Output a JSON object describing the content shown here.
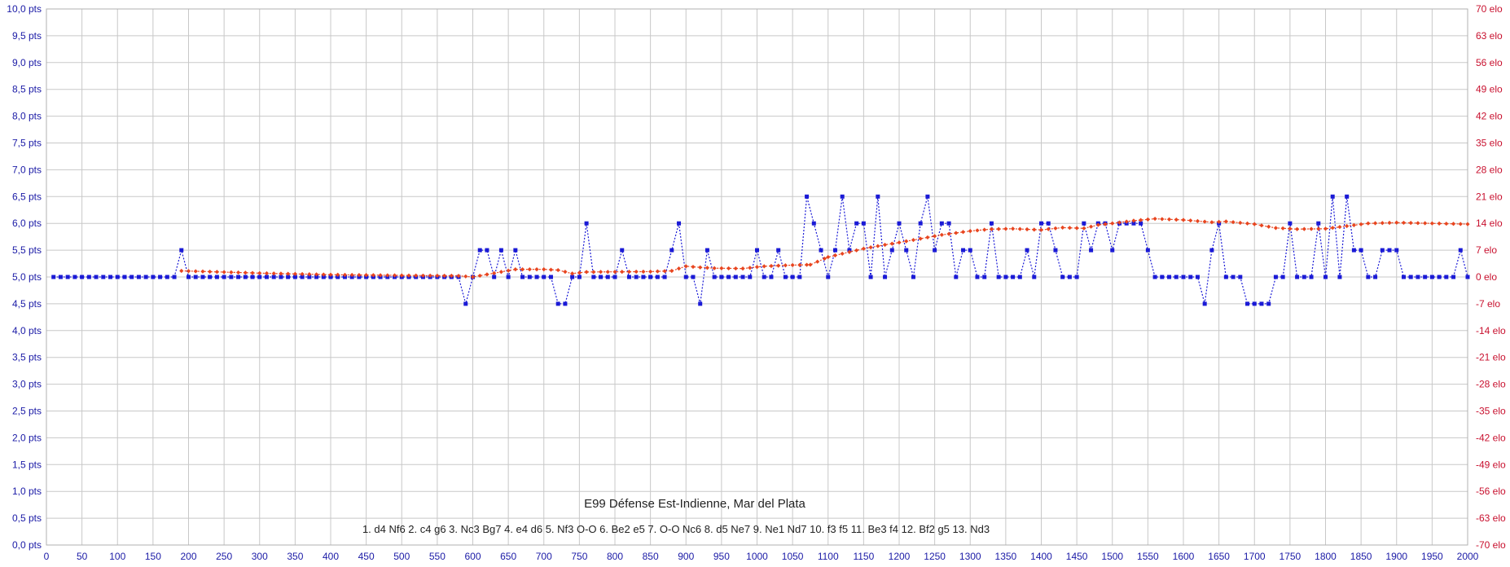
{
  "chart_data": {
    "type": "line",
    "title": "E99 Défense Est-Indienne, Mar del Plata",
    "subtitle": "1. d4 Nf6 2. c4 g6 3. Nc3 Bg7 4. e4 d6 5. Nf3 O-O 6. Be2 e5 7. O-O Nc6 8. d5 Ne7 9. Ne1 Nd7 10. f3 f5 11. Be3 f4 12. Bf2 g5 13. Nd3",
    "grid": true,
    "x_axis": {
      "min": 0,
      "max": 2000,
      "ticks": [
        0,
        50,
        100,
        150,
        200,
        250,
        300,
        350,
        400,
        450,
        500,
        550,
        600,
        650,
        700,
        750,
        800,
        850,
        900,
        950,
        1000,
        1050,
        1100,
        1150,
        1200,
        1250,
        1300,
        1350,
        1400,
        1450,
        1500,
        1550,
        1600,
        1650,
        1700,
        1750,
        1800,
        1850,
        1900,
        1950,
        2000
      ]
    },
    "y_left": {
      "min": 0,
      "max": 10,
      "tick_labels": [
        "0,0 pts",
        "0,5 pts",
        "1,0 pts",
        "1,5 pts",
        "2,0 pts",
        "2,5 pts",
        "3,0 pts",
        "3,5 pts",
        "4,0 pts",
        "4,5 pts",
        "5,0 pts",
        "5,5 pts",
        "6,0 pts",
        "6,5 pts",
        "7,0 pts",
        "7,5 pts",
        "8,0 pts",
        "8,5 pts",
        "9,0 pts",
        "9,5 pts",
        "10,0 pts"
      ]
    },
    "y_right": {
      "min": -70,
      "max": 70,
      "tick_labels": [
        "-70 elo",
        "-63 elo",
        "-56 elo",
        "-49 elo",
        "-42 elo",
        "-35 elo",
        "-28 elo",
        "-21 elo",
        "-14 elo",
        "-7 elo",
        "0 elo",
        "7 elo",
        "14 elo",
        "21 elo",
        "28 elo",
        "35 elo",
        "42 elo",
        "49 elo",
        "56 elo",
        "63 elo",
        "70 elo"
      ]
    },
    "series": [
      {
        "axis": "left",
        "color": "#1a1ad6",
        "marker": "square",
        "line": "dotted",
        "x_start": 10,
        "x_step": 10,
        "values": [
          5,
          5,
          5,
          5,
          5,
          5,
          5,
          5,
          5,
          5,
          5,
          5,
          5,
          5,
          5,
          5,
          5,
          5,
          5.5,
          5,
          5,
          5,
          5,
          5,
          5,
          5,
          5,
          5,
          5,
          5,
          5,
          5,
          5,
          5,
          5,
          5,
          5,
          5,
          5,
          5,
          5,
          5,
          5,
          5,
          5,
          5,
          5,
          5,
          5,
          5,
          5,
          5,
          5,
          5,
          5,
          5,
          5,
          5,
          4.5,
          5,
          5.5,
          5.5,
          5,
          5.5,
          5,
          5.5,
          5,
          5,
          5,
          5,
          5,
          4.5,
          4.5,
          5,
          5,
          6,
          5,
          5,
          5,
          5,
          5.5,
          5,
          5,
          5,
          5,
          5,
          5,
          5.5,
          6,
          5,
          5,
          4.5,
          5.5,
          5,
          5,
          5,
          5,
          5,
          5,
          5.5,
          5,
          5,
          5.5,
          5,
          5,
          5,
          6.5,
          6,
          5.5,
          5,
          5.5,
          6.5,
          5.5,
          6,
          6,
          5,
          6.5,
          5,
          5.5,
          6,
          5.5,
          5,
          6,
          6.5,
          5.5,
          6,
          6,
          5,
          5.5,
          5.5,
          5,
          5,
          6,
          5,
          5,
          5,
          5,
          5.5,
          5,
          6,
          6,
          5.5,
          5,
          5,
          5,
          6,
          5.5,
          6,
          6,
          5.5,
          6,
          6,
          6,
          6,
          5.5,
          5,
          5,
          5,
          5,
          5,
          5,
          5,
          4.5,
          5.5,
          6,
          5,
          5,
          5,
          4.5,
          4.5,
          4.5,
          4.5,
          5,
          5,
          6,
          5,
          5,
          5,
          6,
          5,
          6.5,
          5,
          6.5,
          5.5,
          5.5,
          5,
          5,
          5.5,
          5.5,
          5.5,
          5,
          5,
          5,
          5,
          5,
          5,
          5,
          5,
          5.5,
          5
        ]
      },
      {
        "axis": "right",
        "color": "#e8451f",
        "marker": "diamond",
        "line": "dotted",
        "points": [
          [
            190,
            1.6
          ],
          [
            300,
            1.0
          ],
          [
            400,
            0.6
          ],
          [
            500,
            0.4
          ],
          [
            580,
            0.3
          ],
          [
            600,
            0
          ],
          [
            630,
            1.0
          ],
          [
            660,
            2.0
          ],
          [
            700,
            2.0
          ],
          [
            720,
            1.8
          ],
          [
            740,
            0.9
          ],
          [
            760,
            1.3
          ],
          [
            850,
            1.4
          ],
          [
            880,
            1.6
          ],
          [
            900,
            2.8
          ],
          [
            920,
            2.5
          ],
          [
            940,
            2.3
          ],
          [
            980,
            2.2
          ],
          [
            1010,
            2.8
          ],
          [
            1050,
            3.1
          ],
          [
            1075,
            3.2
          ],
          [
            1100,
            5.2
          ],
          [
            1150,
            7.4
          ],
          [
            1180,
            8.4
          ],
          [
            1200,
            9.0
          ],
          [
            1260,
            11.0
          ],
          [
            1300,
            12.0
          ],
          [
            1330,
            12.5
          ],
          [
            1360,
            12.6
          ],
          [
            1400,
            12.3
          ],
          [
            1430,
            12.9
          ],
          [
            1460,
            12.7
          ],
          [
            1480,
            13.6
          ],
          [
            1500,
            14.0
          ],
          [
            1530,
            14.7
          ],
          [
            1560,
            15.2
          ],
          [
            1600,
            14.9
          ],
          [
            1640,
            14.3
          ],
          [
            1660,
            14.5
          ],
          [
            1700,
            13.8
          ],
          [
            1730,
            12.8
          ],
          [
            1760,
            12.5
          ],
          [
            1800,
            12.6
          ],
          [
            1830,
            13.3
          ],
          [
            1860,
            14.0
          ],
          [
            1900,
            14.2
          ],
          [
            1950,
            14.0
          ],
          [
            2000,
            13.8
          ]
        ]
      }
    ]
  }
}
